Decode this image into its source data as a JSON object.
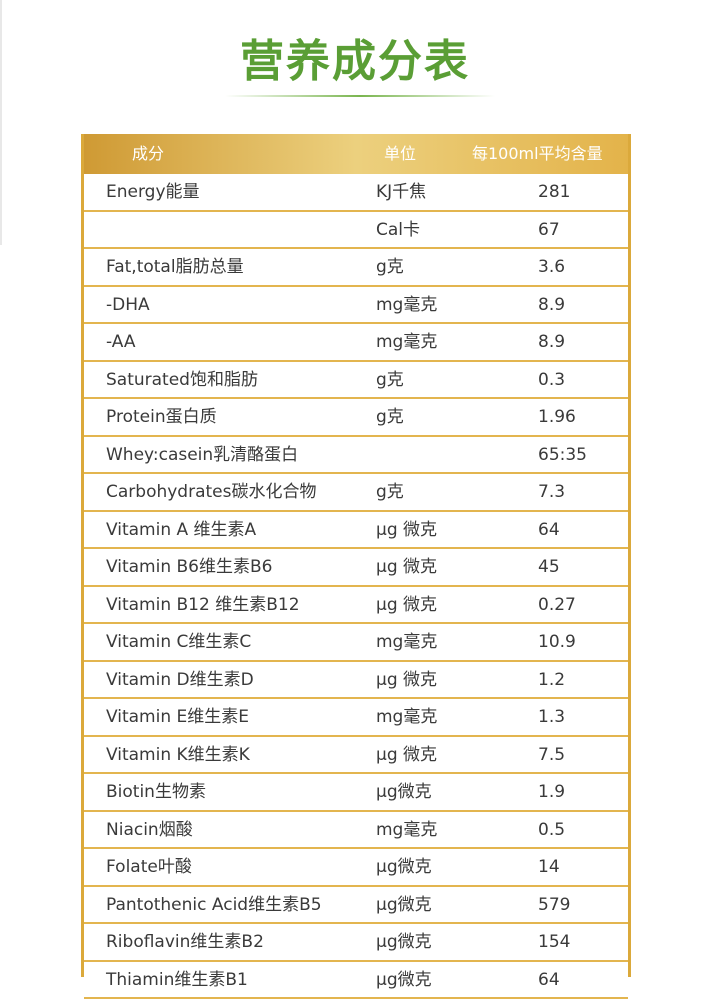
{
  "title": "营养成分表",
  "table": {
    "headers": {
      "ingredient": "成分",
      "unit": "单位",
      "amount": "每100ml平均含量"
    },
    "rows": [
      {
        "name": "Energy能量",
        "unit": "KJ千焦",
        "value": "281"
      },
      {
        "name": "",
        "unit": "Cal卡",
        "value": "67"
      },
      {
        "name": "Fat,total脂肪总量",
        "unit": "g克",
        "value": "3.6"
      },
      {
        "name": "-DHA",
        "unit": "mg毫克",
        "value": "8.9"
      },
      {
        "name": "-AA",
        "unit": "mg毫克",
        "value": "8.9"
      },
      {
        "name": "Saturated饱和脂肪",
        "unit": "g克",
        "value": "0.3"
      },
      {
        "name": "Protein蛋白质",
        "unit": "g克",
        "value": "1.96"
      },
      {
        "name": "Whey:casein乳清酪蛋白",
        "unit": "",
        "value": "65:35"
      },
      {
        "name": "Carbohydrates碳水化合物",
        "unit": "g克",
        "value": "7.3"
      },
      {
        "name": "Vitamin A 维生素A",
        "unit": "μg 微克",
        "value": "64"
      },
      {
        "name": "Vitamin B6维生素B6",
        "unit": "μg 微克",
        "value": "45"
      },
      {
        "name": "Vitamin B12 维生素B12",
        "unit": "μg 微克",
        "value": "0.27"
      },
      {
        "name": "Vitamin C维生素C",
        "unit": "mg毫克",
        "value": "10.9"
      },
      {
        "name": "Vitamin D维生素D",
        "unit": "μg 微克",
        "value": "1.2"
      },
      {
        "name": "Vitamin E维生素E",
        "unit": "mg毫克",
        "value": "1.3"
      },
      {
        "name": "Vitamin K维生素K",
        "unit": "μg 微克",
        "value": "7.5"
      },
      {
        "name": "Biotin生物素",
        "unit": "μg微克",
        "value": "1.9"
      },
      {
        "name": "Niacin烟酸",
        "unit": "mg毫克",
        "value": "0.5"
      },
      {
        "name": "Folate叶酸",
        "unit": "μg微克",
        "value": "14"
      },
      {
        "name": "Pantothenic Acid维生素B5",
        "unit": "μg微克",
        "value": "579"
      },
      {
        "name": "Riboflavin维生素B2",
        "unit": "μg微克",
        "value": "154"
      },
      {
        "name": "Thiamin维生素B1",
        "unit": "μg微克",
        "value": "64"
      }
    ]
  }
}
